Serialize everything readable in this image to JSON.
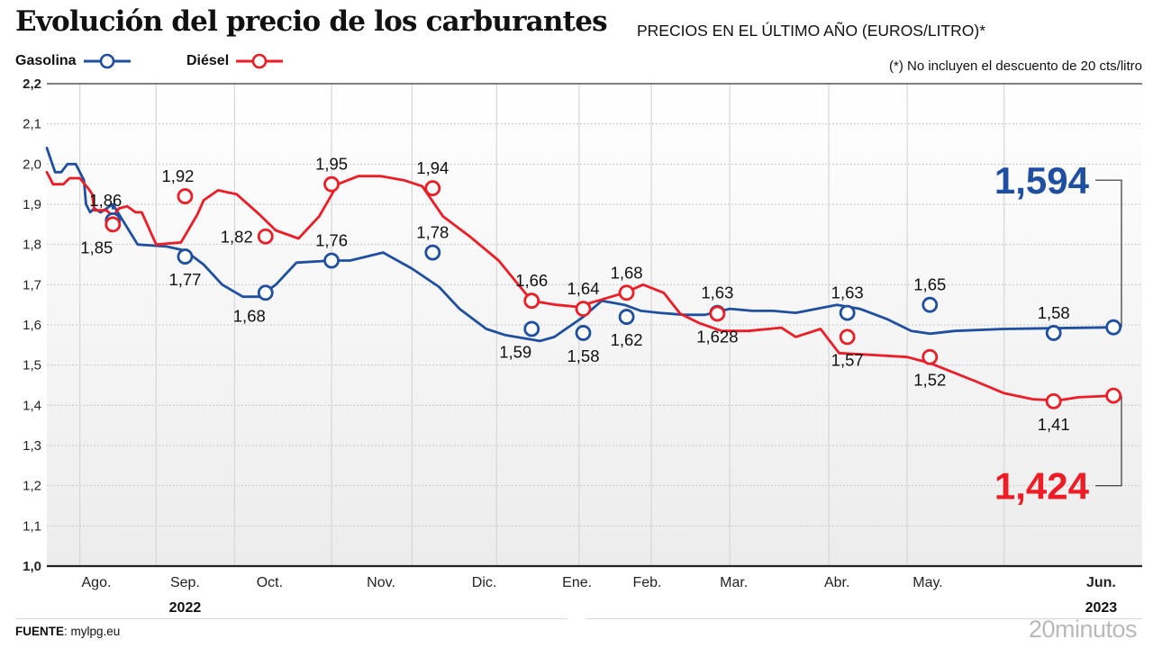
{
  "header": {
    "title": "Evolución del precio de los carburantes",
    "subtitle": "PRECIOS EN EL ÚLTIMO AÑO (EUROS/LITRO)*",
    "note": "(*) No incluyen el descuento de 20 cts/litro"
  },
  "legend": [
    {
      "label": "Gasolina",
      "color": "#1f4fa0"
    },
    {
      "label": "Diésel",
      "color": "#ee1c25"
    }
  ],
  "footer": {
    "source_label": "FUENTE",
    "source_value": ": mylpg.eu",
    "brand": "20minutos"
  },
  "chart_data": {
    "type": "line",
    "title": "Evolución del precio de los carburantes",
    "subtitle": "PRECIOS EN EL ÚLTIMO AÑO (EUROS/LITRO)*",
    "xlabel": "",
    "ylabel": "Euros/litro",
    "x_unit": "week index (0 = mid-July 2022, 52 = early July 2023)",
    "xlim": [
      0,
      52
    ],
    "ylim": [
      1.0,
      2.2
    ],
    "yticks": [
      {
        "value": 2.2,
        "label": "2,2",
        "bold": true
      },
      {
        "value": 2.1,
        "label": "2,1"
      },
      {
        "value": 2.0,
        "label": "2,0"
      },
      {
        "value": 1.9,
        "label": "1,9"
      },
      {
        "value": 1.8,
        "label": "1,8"
      },
      {
        "value": 1.7,
        "label": "1,7"
      },
      {
        "value": 1.6,
        "label": "1,6"
      },
      {
        "value": 1.5,
        "label": "1,5"
      },
      {
        "value": 1.4,
        "label": "1,4"
      },
      {
        "value": 1.3,
        "label": "1,3"
      },
      {
        "value": 1.2,
        "label": "1,2"
      },
      {
        "value": 1.1,
        "label": "1,1"
      },
      {
        "value": 1.0,
        "label": "1,0",
        "bold": true
      }
    ],
    "month_gridlines": [
      1.6,
      5.3,
      9.1,
      13.8,
      17.7,
      21.8,
      25.8,
      29.3,
      33.1,
      37.9,
      41.7,
      46.4
    ],
    "xticks": [
      {
        "x": 2.4,
        "label": "Ago."
      },
      {
        "x": 6.7,
        "label": "Sep."
      },
      {
        "x": 10.8,
        "label": "Oct."
      },
      {
        "x": 16.2,
        "label": "Nov."
      },
      {
        "x": 21.2,
        "label": "Dic."
      },
      {
        "x": 25.7,
        "label": "Ene."
      },
      {
        "x": 29.1,
        "label": "Feb."
      },
      {
        "x": 33.3,
        "label": "Mar."
      },
      {
        "x": 38.3,
        "label": "Abr."
      },
      {
        "x": 42.7,
        "label": "May."
      },
      {
        "x": 51.1,
        "label": "Jun.",
        "bold": true
      }
    ],
    "year_labels": [
      {
        "x": 6.7,
        "label": "2022"
      },
      {
        "x": 51.1,
        "label": "2023"
      }
    ],
    "grid": true,
    "legend_position": "top-left",
    "series": [
      {
        "name": "Gasolina",
        "color": "#1f4fa0",
        "points": [
          [
            0.0,
            2.04
          ],
          [
            0.4,
            1.98
          ],
          [
            0.7,
            1.98
          ],
          [
            1.0,
            2.0
          ],
          [
            1.4,
            2.0
          ],
          [
            1.6,
            1.98
          ],
          [
            1.8,
            1.96
          ],
          [
            1.9,
            1.9
          ],
          [
            2.1,
            1.88
          ],
          [
            2.3,
            1.89
          ],
          [
            2.6,
            1.88
          ],
          [
            2.9,
            1.89
          ],
          [
            3.2,
            1.9
          ],
          [
            3.2,
            1.89
          ],
          [
            3.2,
            1.9
          ],
          [
            4.4,
            1.8
          ],
          [
            5.8,
            1.795
          ],
          [
            6.7,
            1.785
          ],
          [
            7.6,
            1.75
          ],
          [
            8.5,
            1.7
          ],
          [
            9.5,
            1.67
          ],
          [
            10.3,
            1.67
          ],
          [
            11.1,
            1.7
          ],
          [
            12.1,
            1.755
          ],
          [
            13.8,
            1.76
          ],
          [
            14.7,
            1.76
          ],
          [
            16.3,
            1.78
          ],
          [
            17.7,
            1.74
          ],
          [
            19.0,
            1.695
          ],
          [
            20.0,
            1.64
          ],
          [
            21.3,
            1.59
          ],
          [
            22.2,
            1.575
          ],
          [
            23.9,
            1.56
          ],
          [
            24.6,
            1.57
          ],
          [
            26.0,
            1.62
          ],
          [
            26.9,
            1.66
          ],
          [
            28.0,
            1.65
          ],
          [
            28.8,
            1.635
          ],
          [
            29.7,
            1.63
          ],
          [
            30.9,
            1.625
          ],
          [
            31.9,
            1.625
          ],
          [
            33.1,
            1.64
          ],
          [
            34.2,
            1.635
          ],
          [
            35.2,
            1.635
          ],
          [
            36.3,
            1.63
          ],
          [
            38.3,
            1.65
          ],
          [
            39.4,
            1.64
          ],
          [
            40.7,
            1.615
          ],
          [
            41.9,
            1.585
          ],
          [
            42.8,
            1.578
          ],
          [
            44.0,
            1.585
          ],
          [
            46.4,
            1.59
          ],
          [
            51.7,
            1.594
          ]
        ]
      },
      {
        "name": "Diésel",
        "color": "#ee1c25",
        "points": [
          [
            0.0,
            1.98
          ],
          [
            0.3,
            1.95
          ],
          [
            0.8,
            1.95
          ],
          [
            1.1,
            1.965
          ],
          [
            1.6,
            1.965
          ],
          [
            2.0,
            1.94
          ],
          [
            2.2,
            1.925
          ],
          [
            2.3,
            1.885
          ],
          [
            2.9,
            1.885
          ],
          [
            3.2,
            1.87
          ],
          [
            3.5,
            1.89
          ],
          [
            3.9,
            1.895
          ],
          [
            4.3,
            1.88
          ],
          [
            4.6,
            1.88
          ],
          [
            5.3,
            1.8
          ],
          [
            6.5,
            1.805
          ],
          [
            7.3,
            1.875
          ],
          [
            7.6,
            1.91
          ],
          [
            8.3,
            1.935
          ],
          [
            9.2,
            1.925
          ],
          [
            10.3,
            1.875
          ],
          [
            11.1,
            1.835
          ],
          [
            12.2,
            1.815
          ],
          [
            13.2,
            1.87
          ],
          [
            14.1,
            1.95
          ],
          [
            15.1,
            1.97
          ],
          [
            16.2,
            1.97
          ],
          [
            17.3,
            1.96
          ],
          [
            18.2,
            1.945
          ],
          [
            19.2,
            1.87
          ],
          [
            20.5,
            1.82
          ],
          [
            21.9,
            1.76
          ],
          [
            23.5,
            1.66
          ],
          [
            24.7,
            1.65
          ],
          [
            25.7,
            1.645
          ],
          [
            26.7,
            1.66
          ],
          [
            28.0,
            1.68
          ],
          [
            28.9,
            1.7
          ],
          [
            29.9,
            1.68
          ],
          [
            30.7,
            1.628
          ],
          [
            31.6,
            1.605
          ],
          [
            32.7,
            1.585
          ],
          [
            34.0,
            1.585
          ],
          [
            35.6,
            1.593
          ],
          [
            36.3,
            1.57
          ],
          [
            37.5,
            1.59
          ],
          [
            38.4,
            1.53
          ],
          [
            40.1,
            1.525
          ],
          [
            41.7,
            1.52
          ],
          [
            42.8,
            1.505
          ],
          [
            45.0,
            1.46
          ],
          [
            46.4,
            1.43
          ],
          [
            47.8,
            1.415
          ],
          [
            49.0,
            1.412
          ],
          [
            50.0,
            1.42
          ],
          [
            51.7,
            1.424
          ]
        ]
      }
    ],
    "markers": [
      {
        "series": "Gasolina",
        "x": 3.2,
        "y": 1.86,
        "label": "1,86",
        "label_pos": "above-left"
      },
      {
        "series": "Diésel",
        "x": 3.2,
        "y": 1.85,
        "label": "1,85",
        "label_pos": "below-left"
      },
      {
        "series": "Gasolina",
        "x": 6.7,
        "y": 1.77,
        "label": "1,77",
        "label_pos": "below"
      },
      {
        "series": "Diésel",
        "x": 6.7,
        "y": 1.92,
        "label": "1,92",
        "label_pos": "above-left"
      },
      {
        "series": "Gasolina",
        "x": 10.6,
        "y": 1.68,
        "label": "1,68",
        "label_pos": "below-left"
      },
      {
        "series": "Diésel",
        "x": 10.6,
        "y": 1.82,
        "label": "1,82",
        "label_pos": "left"
      },
      {
        "series": "Gasolina",
        "x": 13.8,
        "y": 1.76,
        "label": "1,76",
        "label_pos": "above"
      },
      {
        "series": "Diésel",
        "x": 13.8,
        "y": 1.95,
        "label": "1,95",
        "label_pos": "above"
      },
      {
        "series": "Gasolina",
        "x": 18.7,
        "y": 1.78,
        "label": "1,78",
        "label_pos": "above"
      },
      {
        "series": "Diésel",
        "x": 18.7,
        "y": 1.94,
        "label": "1,94",
        "label_pos": "above"
      },
      {
        "series": "Gasolina",
        "x": 23.5,
        "y": 1.59,
        "label": "1,59",
        "label_pos": "below-left"
      },
      {
        "series": "Diésel",
        "x": 23.5,
        "y": 1.66,
        "label": "1,66",
        "label_pos": "above"
      },
      {
        "series": "Gasolina",
        "x": 26.0,
        "y": 1.58,
        "label": "1,58",
        "label_pos": "below"
      },
      {
        "series": "Diésel",
        "x": 26.0,
        "y": 1.64,
        "label": "1,64",
        "label_pos": "above"
      },
      {
        "series": "Gasolina",
        "x": 28.1,
        "y": 1.62,
        "label": "1,62",
        "label_pos": "below"
      },
      {
        "series": "Diésel",
        "x": 28.1,
        "y": 1.68,
        "label": "1,68",
        "label_pos": "above"
      },
      {
        "series": "Gasolina",
        "x": 32.5,
        "y": 1.63,
        "label": "1,63",
        "label_pos": "above"
      },
      {
        "series": "Diésel",
        "x": 32.5,
        "y": 1.628,
        "label": "1,628",
        "label_pos": "below"
      },
      {
        "series": "Gasolina",
        "x": 38.8,
        "y": 1.63,
        "label": "1,63",
        "label_pos": "above"
      },
      {
        "series": "Diésel",
        "x": 38.8,
        "y": 1.57,
        "label": "1,57",
        "label_pos": "below"
      },
      {
        "series": "Gasolina",
        "x": 42.8,
        "y": 1.65,
        "label": "1,65",
        "label_pos": "above"
      },
      {
        "series": "Diésel",
        "x": 42.8,
        "y": 1.52,
        "label": "1,52",
        "label_pos": "below"
      },
      {
        "series": "Gasolina",
        "x": 48.8,
        "y": 1.58,
        "label": "1,58",
        "label_pos": "above"
      },
      {
        "series": "Diésel",
        "x": 48.8,
        "y": 1.41,
        "label": "1,41",
        "label_pos": "below"
      },
      {
        "series": "Gasolina",
        "x": 51.7,
        "y": 1.594,
        "label": "",
        "label_pos": "none"
      },
      {
        "series": "Diésel",
        "x": 51.7,
        "y": 1.424,
        "label": "",
        "label_pos": "none"
      }
    ],
    "callouts": [
      {
        "series": "Gasolina",
        "value": 1.594,
        "label": "1,594",
        "color": "#1f4fa0",
        "anchor_y": 1.96
      },
      {
        "series": "Diésel",
        "value": 1.424,
        "label": "1,424",
        "color": "#ee1c25",
        "anchor_y": 1.2
      }
    ]
  }
}
